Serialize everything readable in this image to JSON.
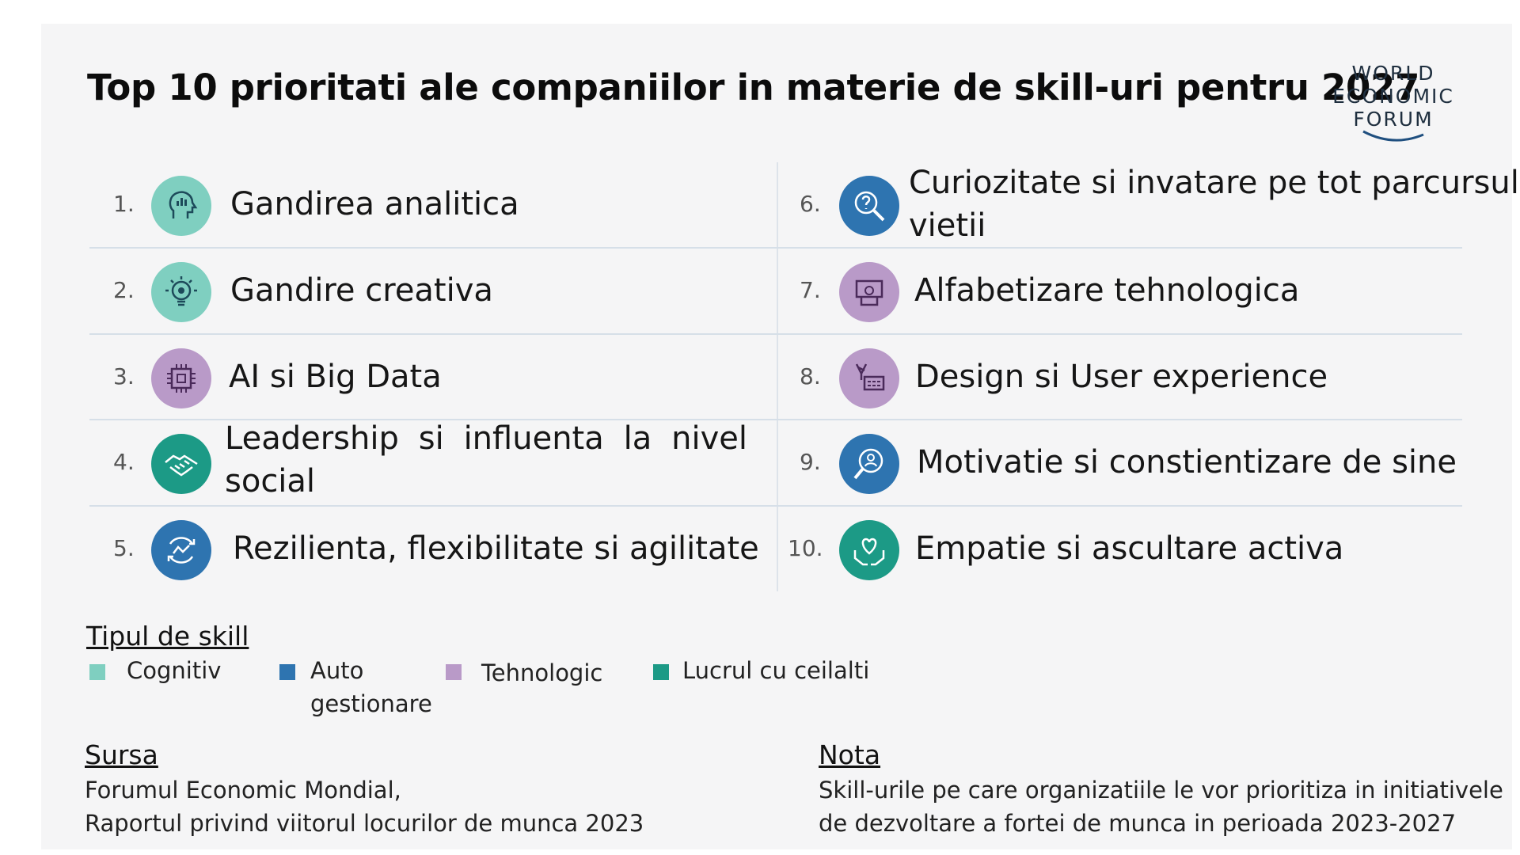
{
  "title": "Top 10 prioritati ale companiilor in materie de skill-uri pentru 2027",
  "logo": {
    "line1": "WORLD",
    "line2": "ECONOMIC",
    "line3": "FORUM"
  },
  "colors": {
    "cognitiv": "#7fcfc0",
    "auto": "#2e74b0",
    "tehnologic": "#b99ac8",
    "lucrul": "#1c9a86"
  },
  "skills_left": [
    {
      "num": "1.",
      "label": "Gandirea analitica",
      "type": "cognitiv",
      "icon": "head-chart-icon"
    },
    {
      "num": "2.",
      "label": "Gandire creativa",
      "type": "cognitiv",
      "icon": "lightbulb-gear-icon"
    },
    {
      "num": "3.",
      "label": "AI si Big Data",
      "type": "tehnologic",
      "icon": "chip-icon"
    },
    {
      "num": "4.",
      "line1": "Leadership si influenta la nivel",
      "line2": "social",
      "type": "lucrul",
      "icon": "handshake-icon"
    },
    {
      "num": "5.",
      "label": "Rezilienta, flexibilitate si agilitate",
      "type": "auto",
      "icon": "arrows-cycle-icon"
    }
  ],
  "skills_right": [
    {
      "num": "6.",
      "line1": "Curiozitate si invatare pe tot parcursul",
      "line2": "vietii",
      "type": "auto",
      "icon": "magnifier-question-icon"
    },
    {
      "num": "7.",
      "label": "Alfabetizare tehnologica",
      "type": "tehnologic",
      "icon": "device-gear-icon"
    },
    {
      "num": "8.",
      "label": "Design si User experience",
      "type": "tehnologic",
      "icon": "design-tools-icon"
    },
    {
      "num": "9.",
      "label": "Motivatie si constientizare de sine",
      "type": "auto",
      "icon": "self-search-icon"
    },
    {
      "num": "10.",
      "label": "Empatie si ascultare activa",
      "type": "lucrul",
      "icon": "heart-hands-icon"
    }
  ],
  "legend": {
    "title": "Tipul de skill",
    "items": [
      {
        "label": "Cognitiv"
      },
      {
        "label1": "Auto",
        "label2": "gestionare"
      },
      {
        "label": "Tehnologic"
      },
      {
        "label": "Lucrul cu ceilalti"
      }
    ]
  },
  "source": {
    "title": "Sursa",
    "line1": "Forumul Economic Mondial,",
    "line2": "Raportul privind viitorul locurilor de munca 2023"
  },
  "note": {
    "title": "Nota",
    "line1": "Skill-urile pe care organizatiile le vor prioritiza in initiativele",
    "line2": "de dezvoltare a fortei de munca in perioada 2023-2027"
  }
}
